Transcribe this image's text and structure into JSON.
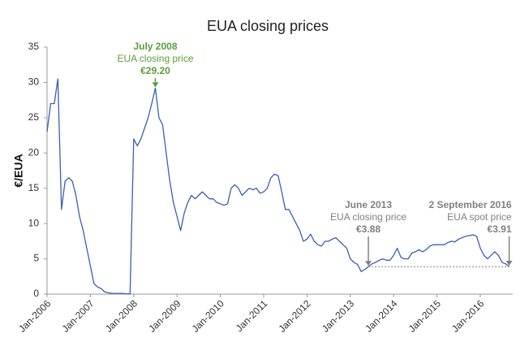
{
  "chart_data": {
    "type": "line",
    "title": "EUA closing prices",
    "y_label": "€/EUA",
    "xlim": [
      "2006-01",
      "2016-10"
    ],
    "xticks": [
      {
        "value": "2006-01",
        "label": "Jan-2006"
      },
      {
        "value": "2007-01",
        "label": "Jan-2007"
      },
      {
        "value": "2008-01",
        "label": "Jan-2008"
      },
      {
        "value": "2009-01",
        "label": "Jan-2009"
      },
      {
        "value": "2010-01",
        "label": "Jan-2010"
      },
      {
        "value": "2011-01",
        "label": "Jan-2011"
      },
      {
        "value": "2012-01",
        "label": "Jan-2012"
      },
      {
        "value": "2013-01",
        "label": "Jan-2013"
      },
      {
        "value": "2014-01",
        "label": "Jan-2014"
      },
      {
        "value": "2015-01",
        "label": "Jan-2015"
      },
      {
        "value": "2016-01",
        "label": "Jan-2016"
      }
    ],
    "ylim": [
      0,
      35
    ],
    "yticks": [
      0,
      5,
      10,
      15,
      20,
      25,
      30,
      35
    ],
    "grid": false,
    "x": [
      "2006-01",
      "2006-02",
      "2006-03",
      "2006-04",
      "2006-05",
      "2006-06",
      "2006-07",
      "2006-08",
      "2006-09",
      "2006-10",
      "2006-11",
      "2006-12",
      "2007-01",
      "2007-02",
      "2007-03",
      "2007-04",
      "2007-05",
      "2007-06",
      "2007-07",
      "2007-08",
      "2007-09",
      "2007-10",
      "2007-11",
      "2007-12",
      "2008-01",
      "2008-02",
      "2008-03",
      "2008-04",
      "2008-05",
      "2008-06",
      "2008-07",
      "2008-08",
      "2008-09",
      "2008-10",
      "2008-11",
      "2008-12",
      "2009-01",
      "2009-02",
      "2009-03",
      "2009-04",
      "2009-05",
      "2009-06",
      "2009-07",
      "2009-08",
      "2009-09",
      "2009-10",
      "2009-11",
      "2009-12",
      "2010-01",
      "2010-02",
      "2010-03",
      "2010-04",
      "2010-05",
      "2010-06",
      "2010-07",
      "2010-08",
      "2010-09",
      "2010-10",
      "2010-11",
      "2010-12",
      "2011-01",
      "2011-02",
      "2011-03",
      "2011-04",
      "2011-05",
      "2011-06",
      "2011-07",
      "2011-08",
      "2011-09",
      "2011-10",
      "2011-11",
      "2011-12",
      "2012-01",
      "2012-02",
      "2012-03",
      "2012-04",
      "2012-05",
      "2012-06",
      "2012-07",
      "2012-08",
      "2012-09",
      "2012-10",
      "2012-11",
      "2012-12",
      "2013-01",
      "2013-02",
      "2013-03",
      "2013-04",
      "2013-05",
      "2013-06",
      "2013-07",
      "2013-08",
      "2013-09",
      "2013-10",
      "2013-11",
      "2013-12",
      "2014-01",
      "2014-02",
      "2014-03",
      "2014-04",
      "2014-05",
      "2014-06",
      "2014-07",
      "2014-08",
      "2014-09",
      "2014-10",
      "2014-11",
      "2014-12",
      "2015-01",
      "2015-02",
      "2015-03",
      "2015-04",
      "2015-05",
      "2015-06",
      "2015-07",
      "2015-08",
      "2015-09",
      "2015-10",
      "2015-11",
      "2015-12",
      "2016-01",
      "2016-02",
      "2016-03",
      "2016-04",
      "2016-05",
      "2016-06",
      "2016-07",
      "2016-08",
      "2016-09"
    ],
    "series": [
      {
        "name": "EUA closing price",
        "color": "#3a5fb5",
        "values": [
          23,
          27,
          27,
          30.5,
          12,
          16,
          16.5,
          16,
          14,
          11,
          9,
          6.5,
          4,
          1.5,
          1.0,
          0.8,
          0.3,
          0.2,
          0.1,
          0.1,
          0.1,
          0.1,
          0.05,
          0.03,
          22,
          21,
          22,
          23.5,
          25,
          27,
          29.2,
          25,
          24,
          20,
          16,
          13,
          11,
          9,
          11.5,
          13,
          14,
          13.5,
          14,
          14.5,
          14,
          13.5,
          13.5,
          13,
          12.8,
          12.6,
          12.8,
          15,
          15.5,
          15,
          14,
          14.5,
          15,
          14.8,
          15,
          14.3,
          14.5,
          15,
          16.5,
          17,
          16.8,
          14.5,
          12,
          12,
          11,
          10,
          9,
          7.5,
          7.8,
          8.5,
          7.5,
          7,
          6.8,
          7.5,
          7.5,
          7.8,
          8,
          7.5,
          7,
          6.5,
          5,
          4.5,
          4.2,
          3.2,
          3.5,
          3.88,
          4.3,
          4.5,
          4.8,
          5,
          4.8,
          4.8,
          5.5,
          6.5,
          5.2,
          5,
          5,
          5.8,
          6,
          6.3,
          6,
          6.3,
          6.8,
          7,
          7,
          7,
          7,
          7.3,
          7.5,
          7.4,
          7.8,
          8,
          8.2,
          8.3,
          8.4,
          8.2,
          6.5,
          5.5,
          5,
          5.5,
          6,
          5.5,
          4.5,
          4.3,
          3.91
        ]
      }
    ],
    "annotations": [
      {
        "x": "2008-07",
        "value": 29.2,
        "title": "July 2008",
        "text": "EUA closing price",
        "label": "€29.20",
        "color": "#5a9e3a",
        "anchor": "middle"
      },
      {
        "x": "2013-06",
        "value": 3.88,
        "title": "June 2013",
        "text": "EUA closing price",
        "label": "€3.88",
        "color": "#808080",
        "anchor": "middle",
        "reference_line": true
      },
      {
        "x": "2016-09",
        "value": 3.91,
        "title": "2 September 2016",
        "text": "EUA spot price",
        "label": "€3.91",
        "color": "#808080",
        "anchor": "end"
      }
    ]
  }
}
